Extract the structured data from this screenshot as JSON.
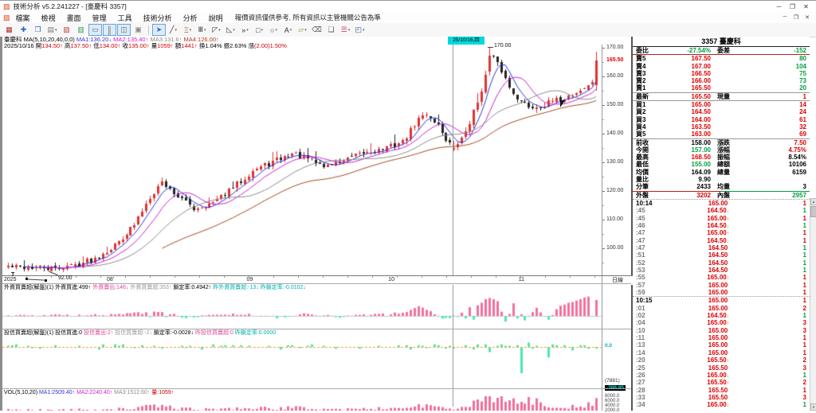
{
  "window": {
    "icon_glyph": "▨",
    "title": "技術分析 v5.2.241227 - [臺慶科 3357]",
    "controls": [
      "─",
      "❐",
      "✕"
    ]
  },
  "menu": {
    "icon_glyph": "▨",
    "items": [
      "檔案",
      "檢視",
      "畫面",
      "管理",
      "工具",
      "技術分析",
      "分析",
      "說明"
    ],
    "notice": "報價資訊僅供參考, 所有資訊以主管機關公告為準",
    "child_controls": [
      "─",
      "❐",
      "✕"
    ]
  },
  "toolbar": {
    "icons": [
      {
        "name": "market-chart-icon",
        "glyph": "▦",
        "color": "#b03030"
      },
      {
        "name": "new-chart-icon",
        "glyph": "✚",
        "color": "#2a62c8"
      },
      {
        "name": "window-layout-icon",
        "glyph": "❐",
        "color": "#2a62c8"
      },
      {
        "name": "chart-style-icon",
        "glyph": "▤",
        "color": "#777777",
        "dropdown": true
      },
      {
        "name": "close-page-icon",
        "glyph": "▧",
        "color": "#c04848"
      },
      {
        "name": "grid-chart-icon",
        "glyph": "▥",
        "color": "#2f9e55"
      },
      {
        "name": "line-chart-icon",
        "glyph": "▭",
        "color": "#666666",
        "selected": true
      },
      {
        "name": "candlestick-icon",
        "glyph": "║",
        "color": "#666666",
        "selected": true
      },
      {
        "name": "multi-panel-icon",
        "glyph": "◫",
        "color": "#666666",
        "selected": true
      },
      {
        "name": "snapshot-icon",
        "glyph": "▣",
        "color": "#888888"
      },
      {
        "sep": true
      },
      {
        "name": "pointer-tool-icon",
        "glyph": "➤",
        "color": "#3366bb",
        "selected": true
      },
      {
        "name": "trendline-tool-icon",
        "glyph": "╱",
        "color": "#333333",
        "dropdown": true
      },
      {
        "name": "fibonacci-tool-icon",
        "glyph": "Ξ",
        "color": "#aa6622",
        "dropdown": true
      },
      {
        "name": "vertical-lines-tool-icon",
        "glyph": "Ⅲ",
        "color": "#333333",
        "dropdown": true
      },
      {
        "name": "gann-fan-tool-icon",
        "glyph": "◸",
        "color": "#333333",
        "dropdown": true
      },
      {
        "name": "measure-tool-icon",
        "glyph": "◺",
        "color": "#333333",
        "dropdown": true
      },
      {
        "name": "marker-tool-icon",
        "glyph": "»",
        "color": "#333333",
        "dropdown": true
      },
      {
        "name": "rectangle-tool-icon",
        "glyph": "□",
        "color": "#333333",
        "dropdown": true
      },
      {
        "name": "ellipse-tool-icon",
        "glyph": "○",
        "color": "#333333",
        "dropdown": true
      },
      {
        "name": "text-tool-icon",
        "glyph": "A",
        "color": "#333333",
        "dropdown": true
      },
      {
        "name": "highlight-tool-icon",
        "glyph": "▱",
        "color": "#888833",
        "dropdown": true
      },
      {
        "name": "eraser-tool-icon",
        "glyph": "⌫",
        "color": "#555555"
      },
      {
        "name": "objects-list-icon",
        "glyph": "❏",
        "color": "#555555"
      },
      {
        "name": "indicator-lines-icon",
        "glyph": "☰",
        "color": "#d04070",
        "dropdown": true
      },
      {
        "name": "save-layout-icon",
        "glyph": "◰",
        "color": "#336699",
        "dropdown": true
      }
    ]
  },
  "info_line1": [
    {
      "t": "臺慶科 MA(5,10,20,40,0,0) ",
      "c": "#000000"
    },
    {
      "t": "MA1:136.20↓",
      "c": "#2b35d9"
    },
    {
      "t": " MA2:135.40↑",
      "c": "#cc22cc"
    },
    {
      "t": " MA3:131.6↑",
      "c": "#8a8a8a"
    },
    {
      "t": " MA4:126.00↑",
      "c": "#b03a1a"
    }
  ],
  "info_line2": [
    {
      "t": "2025/10/16 ",
      "c": "#000000"
    },
    {
      "t": "開",
      "c": "#000000"
    },
    {
      "t": "134.50↑ ",
      "c": "#d40000"
    },
    {
      "t": "高",
      "c": "#000000"
    },
    {
      "t": "137.50↑ ",
      "c": "#d40000"
    },
    {
      "t": "低",
      "c": "#000000"
    },
    {
      "t": "134.00↑ ",
      "c": "#d40000"
    },
    {
      "t": "收",
      "c": "#000000"
    },
    {
      "t": "135.00↑ ",
      "c": "#d40000"
    },
    {
      "t": "量",
      "c": "#000000"
    },
    {
      "t": "1059↑ ",
      "c": "#d40000"
    },
    {
      "t": "額",
      "c": "#000000"
    },
    {
      "t": "1441↑ ",
      "c": "#d40000"
    },
    {
      "t": "換",
      "c": "#000000"
    },
    {
      "t": "1.04% ",
      "c": "#000000"
    },
    {
      "t": "振",
      "c": "#000000"
    },
    {
      "t": "2.63% ",
      "c": "#000000"
    },
    {
      "t": "漲",
      "c": "#000000"
    },
    {
      "t": "(2.00)1.50%",
      "c": "#d40000"
    }
  ],
  "panel_foreign_header": [
    {
      "t": "外資買賣超(解盤)(1) ",
      "c": "#000000"
    },
    {
      "t": "外資買進:499↑",
      "c": "#000000"
    },
    {
      "t": " 外資賣出:146↓",
      "c": "#e0459a"
    },
    {
      "t": " 外資買賣超:353↑",
      "c": "#999999"
    },
    {
      "t": " 鎖定率:0.4942↑",
      "c": "#000000"
    },
    {
      "t": " 昨外資買賣超:-13↓",
      "c": "#00b0b0"
    },
    {
      "t": " 昨鎖定率:-0.0102↓",
      "c": "#00b0b0"
    }
  ],
  "panel_trust_header": [
    {
      "t": "投信買賣超(解盤)(1) ",
      "c": "#000000"
    },
    {
      "t": "投信買進:0",
      "c": "#000000"
    },
    {
      "t": " 投信賣出:2↑",
      "c": "#e0459a"
    },
    {
      "t": " 投信買賣超:-2↓",
      "c": "#999999"
    },
    {
      "t": " 鎖定率:-0.0028↓",
      "c": "#000000"
    },
    {
      "t": " 昨投信買賣超:0",
      "c": "#e0459a"
    },
    {
      "t": " 昨鎖定率:0.0000",
      "c": "#00b0b0"
    }
  ],
  "panel_volume_header": [
    {
      "t": "VOL(5,10,20) ",
      "c": "#000000"
    },
    {
      "t": "MA1:2509.40↑",
      "c": "#2b35d9"
    },
    {
      "t": " MA2:2240.40↑",
      "c": "#cc22cc"
    },
    {
      "t": " MA3:1512.60↑",
      "c": "#8a8a8a"
    },
    {
      "t": " 量:1059↑",
      "c": "#d40000"
    }
  ],
  "axis": {
    "y_labels": [
      "170.00",
      "160.00",
      "150.00",
      "140.00",
      "130.00",
      "120.00",
      "110.00",
      "100.00"
    ],
    "price_tag": "165.50",
    "x_labels": [
      {
        "t": "2025",
        "f": 0.0
      },
      {
        "t": "08'",
        "f": 0.172
      },
      {
        "t": "09",
        "f": 0.406
      },
      {
        "t": "10",
        "f": 0.643
      },
      {
        "t": "11",
        "f": 0.861
      }
    ],
    "x_highlight": "25/10/16,四",
    "period_label": "日線",
    "p3_zero_label": "0.0",
    "p3_extra": [
      "(7881)",
      "-386.85"
    ],
    "vol_axis": [
      "8000.0",
      "6000.0",
      "4000.0",
      "2000.0"
    ]
  },
  "annotations": {
    "high_label": "170.00",
    "low_label": "92.00",
    "drawing_t_mark": "T"
  },
  "chart_data": {
    "type": "candlestick",
    "symbol": "3357 臺慶科",
    "period": "日線",
    "days": 150,
    "ylim": [
      91,
      173
    ],
    "y_axis_ticks": [
      170,
      160,
      150,
      140,
      130,
      120,
      110,
      100
    ],
    "x_axis_ticks": [
      "2025",
      "08'",
      "09",
      "10",
      "11"
    ],
    "crosshair_day": 113,
    "crosshair_bar": {
      "date": "2025/10/16",
      "open": 134.5,
      "high": 137.5,
      "low": 134.0,
      "close": 135.0,
      "volume": 1059
    },
    "last_bar": {
      "open": 157.0,
      "high": 168.5,
      "low": 155.0,
      "close": 165.5,
      "volume": 6159
    },
    "prev_close": 158.0,
    "high_annotation": {
      "day": 122,
      "price": 170.0,
      "text": "170.00"
    },
    "low_annotation": {
      "day": 12,
      "price": 92.0,
      "text": "92.00"
    },
    "ma_values": {
      "MA1": 136.2,
      "MA2": 135.4,
      "MA3": 131.6,
      "MA4": 126.0
    },
    "close_anchors": [
      [
        0,
        93.5
      ],
      [
        6,
        93.2
      ],
      [
        12,
        92.8
      ],
      [
        18,
        94.5
      ],
      [
        22,
        96.5
      ],
      [
        27,
        101
      ],
      [
        32,
        108
      ],
      [
        36,
        118
      ],
      [
        39,
        123
      ],
      [
        43,
        118
      ],
      [
        47,
        114
      ],
      [
        52,
        115.5
      ],
      [
        57,
        121
      ],
      [
        62,
        127
      ],
      [
        67,
        130
      ],
      [
        72,
        133
      ],
      [
        76,
        131
      ],
      [
        80,
        128.5
      ],
      [
        84,
        130
      ],
      [
        90,
        133
      ],
      [
        96,
        135
      ],
      [
        100,
        137
      ],
      [
        104,
        145
      ],
      [
        106,
        147
      ],
      [
        109,
        143
      ],
      [
        111,
        138
      ],
      [
        113,
        135
      ],
      [
        115,
        138
      ],
      [
        117,
        144
      ],
      [
        119,
        151
      ],
      [
        121,
        160
      ],
      [
        122,
        167
      ],
      [
        123,
        166
      ],
      [
        125,
        162
      ],
      [
        127,
        156
      ],
      [
        130,
        151
      ],
      [
        133,
        149
      ],
      [
        136,
        150
      ],
      [
        139,
        151.5
      ],
      [
        142,
        153
      ],
      [
        145,
        155
      ],
      [
        147,
        156.5
      ],
      [
        148,
        158
      ],
      [
        149,
        165.5
      ]
    ],
    "pinned_closes": {
      "12": 92.8,
      "113": 135,
      "122": 167,
      "148": 158,
      "149": 165.5
    },
    "pinned_opens": {
      "113": 134.5,
      "122": 161.5,
      "149": 157
    },
    "pinned_highs": {
      "113": 137.5,
      "122": 170,
      "149": 168.5
    },
    "pinned_lows": {
      "12": 92,
      "113": 134,
      "149": 155
    },
    "volume_anchors": [
      [
        0,
        1100
      ],
      [
        10,
        900
      ],
      [
        20,
        1100
      ],
      [
        30,
        1400
      ],
      [
        36,
        2300
      ],
      [
        39,
        2600
      ],
      [
        44,
        1500
      ],
      [
        50,
        1200
      ],
      [
        57,
        1500
      ],
      [
        62,
        1800
      ],
      [
        67,
        1500
      ],
      [
        72,
        1900
      ],
      [
        80,
        1300
      ],
      [
        85,
        1200
      ],
      [
        92,
        1500
      ],
      [
        100,
        1700
      ],
      [
        104,
        2800
      ],
      [
        106,
        3000
      ],
      [
        109,
        1800
      ],
      [
        113,
        1059
      ],
      [
        116,
        2400
      ],
      [
        119,
        3900
      ],
      [
        121,
        5600
      ],
      [
        122,
        6600
      ],
      [
        124,
        6000
      ],
      [
        126,
        5400
      ],
      [
        128,
        4600
      ],
      [
        130,
        3600
      ],
      [
        133,
        5000
      ],
      [
        136,
        2600
      ],
      [
        139,
        2100
      ],
      [
        142,
        2400
      ],
      [
        145,
        3000
      ],
      [
        147,
        3300
      ],
      [
        148,
        2800
      ],
      [
        149,
        6159
      ]
    ],
    "pinned_volumes": {
      "113": 1059,
      "148": 2800,
      "149": 6159
    },
    "foreign_anchors": [
      [
        0,
        8
      ],
      [
        15,
        12
      ],
      [
        25,
        25
      ],
      [
        33,
        60
      ],
      [
        39,
        90
      ],
      [
        45,
        -40
      ],
      [
        52,
        20
      ],
      [
        60,
        45
      ],
      [
        68,
        -30
      ],
      [
        75,
        35
      ],
      [
        85,
        -25
      ],
      [
        92,
        30
      ],
      [
        100,
        60
      ],
      [
        104,
        200
      ],
      [
        107,
        120
      ],
      [
        110,
        -80
      ],
      [
        113,
        -13
      ],
      [
        116,
        150
      ],
      [
        119,
        260
      ],
      [
        122,
        400
      ],
      [
        124,
        340
      ],
      [
        126,
        -150
      ],
      [
        128,
        280
      ],
      [
        131,
        -90
      ],
      [
        134,
        180
      ],
      [
        137,
        -60
      ],
      [
        140,
        220
      ],
      [
        143,
        300
      ],
      [
        145,
        380
      ],
      [
        147,
        430
      ],
      [
        148,
        -13
      ],
      [
        149,
        353
      ]
    ],
    "pinned_foreign": {
      "148": -13,
      "149": 353
    },
    "trust_pins": {
      "122": -6,
      "130": -30,
      "132": 5,
      "137": -12,
      "143": -4,
      "146": 2,
      "148": 0,
      "149": -2
    }
  },
  "quote": {
    "title": "3357 臺慶科",
    "weight_row": {
      "l1": "委比",
      "v1": "-27.54%",
      "l2": "委差",
      "v2": "-152"
    },
    "asks": [
      {
        "l": "賣5",
        "p": "167.50",
        "q": "80"
      },
      {
        "l": "賣4",
        "p": "167.00",
        "q": "104"
      },
      {
        "l": "賣3",
        "p": "166.50",
        "q": "75"
      },
      {
        "l": "賣2",
        "p": "166.00",
        "q": "73"
      },
      {
        "l": "賣1",
        "p": "165.50",
        "q": "20"
      }
    ],
    "latest_row": {
      "l1": "最新",
      "v1": "165.50",
      "l2": "現量",
      "v2": "1"
    },
    "bids": [
      {
        "l": "買1",
        "p": "165.00",
        "q": "14"
      },
      {
        "l": "買2",
        "p": "164.50",
        "q": "24"
      },
      {
        "l": "買3",
        "p": "164.00",
        "q": "61"
      },
      {
        "l": "買4",
        "p": "163.50",
        "q": "32"
      },
      {
        "l": "買5",
        "p": "163.00",
        "q": "69"
      }
    ],
    "stats": [
      {
        "l1": "前收",
        "v1": "158.00",
        "c1": "k",
        "l2": "漲跌",
        "v2": "7.50",
        "c2": "r"
      },
      {
        "l1": "今開",
        "v1": "157.00",
        "c1": "g",
        "l2": "漲幅",
        "v2": "4.75%",
        "c2": "r"
      },
      {
        "l1": "最高",
        "v1": "168.50",
        "c1": "r",
        "l2": "振幅",
        "v2": "8.54%",
        "c2": "k"
      },
      {
        "l1": "最低",
        "v1": "155.00",
        "c1": "g",
        "l2": "總額",
        "v2": "10106",
        "c2": "k"
      },
      {
        "l1": "均價",
        "v1": "164.09",
        "c1": "k",
        "l2": "總量",
        "v2": "6159",
        "c2": "k"
      },
      {
        "l1": "量比",
        "v1": "9.90",
        "c1": "k",
        "l2": "",
        "v2": "",
        "c2": "k"
      },
      {
        "l1": "分筆",
        "v1": "2433",
        "c1": "k",
        "l2": "均量",
        "v2": "3",
        "c2": "k"
      },
      {
        "l1": "外盤",
        "v1": "3202",
        "c1": "r",
        "l2": "內盤",
        "v2": "2957",
        "c2": "g"
      }
    ],
    "ticks": [
      {
        "t": "10:14",
        "p": "165.00",
        "a": "",
        "v": "1",
        "vc": "r",
        "m": true
      },
      {
        "t": ":45",
        "p": "164.50",
        "a": "d",
        "v": "1",
        "vc": "g"
      },
      {
        "t": ":45",
        "p": "165.00",
        "a": "u",
        "v": "1",
        "vc": "r"
      },
      {
        "t": ":46",
        "p": "164.50",
        "a": "d",
        "v": "1",
        "vc": "g"
      },
      {
        "t": ":47",
        "p": "165.00",
        "a": "u",
        "v": "1",
        "vc": "r"
      },
      {
        "t": ":47",
        "p": "164.50",
        "a": "d",
        "v": "1",
        "vc": "r"
      },
      {
        "t": ":47",
        "p": "164.50",
        "a": "",
        "v": "1",
        "vc": "g"
      },
      {
        "t": ":51",
        "p": "164.50",
        "a": "",
        "v": "1",
        "vc": "g"
      },
      {
        "t": ":52",
        "p": "164.50",
        "a": "",
        "v": "1",
        "vc": "g"
      },
      {
        "t": ":53",
        "p": "164.50",
        "a": "",
        "v": "1",
        "vc": "g"
      },
      {
        "t": ":55",
        "p": "165.00",
        "a": "u",
        "v": "1",
        "vc": "r"
      },
      {
        "t": ":57",
        "p": "165.00",
        "a": "",
        "v": "1",
        "vc": "r"
      },
      {
        "t": ":59",
        "p": "165.00",
        "a": "",
        "v": "1",
        "vc": "r"
      },
      {
        "t": "10:15",
        "p": "165.00",
        "a": "",
        "v": "1",
        "vc": "r",
        "m": true
      },
      {
        "t": ":01",
        "p": "165.00",
        "a": "",
        "v": "2",
        "vc": "r"
      },
      {
        "t": ":02",
        "p": "164.50",
        "a": "d",
        "v": "1",
        "vc": "g"
      },
      {
        "t": ":04",
        "p": "165.00",
        "a": "u",
        "v": "3",
        "vc": "r"
      },
      {
        "t": ":10",
        "p": "165.00",
        "a": "",
        "v": "3",
        "vc": "r"
      },
      {
        "t": ":11",
        "p": "165.00",
        "a": "",
        "v": "1",
        "vc": "r"
      },
      {
        "t": ":13",
        "p": "165.00",
        "a": "",
        "v": "1",
        "vc": "r"
      },
      {
        "t": ":14",
        "p": "165.00",
        "a": "",
        "v": "1",
        "vc": "r"
      },
      {
        "t": ":20",
        "p": "165.50",
        "a": "u",
        "v": "2",
        "vc": "r"
      },
      {
        "t": ":25",
        "p": "165.50",
        "a": "",
        "v": "3",
        "vc": "r"
      },
      {
        "t": ":26",
        "p": "165.00",
        "a": "d",
        "v": "1",
        "vc": "g"
      },
      {
        "t": ":27",
        "p": "165.50",
        "a": "u",
        "v": "2",
        "vc": "r"
      },
      {
        "t": ":28",
        "p": "165.50",
        "a": "",
        "v": "1",
        "vc": "r"
      },
      {
        "t": ":33",
        "p": "165.50",
        "a": "",
        "v": "3",
        "vc": "r"
      },
      {
        "t": ":34",
        "p": "165.00",
        "a": "d",
        "v": "1",
        "vc": "g"
      }
    ],
    "scroll_glyphs": {
      "up": "▲",
      "down": "▼"
    }
  },
  "colors": {
    "up_candle": "#e03232",
    "down_candle": "#222222",
    "ma1": "#2b35d9",
    "ma2": "#cc22cc",
    "ma3": "#8a8a8a",
    "ma4": "#a04a20",
    "bar_pink": "#f4719c",
    "bar_mint": "#4de8ac",
    "bar_vol": "#f0709a",
    "zero_orange": "#f0a040",
    "crosshair": "#9a9a9a",
    "text_red": "#dd0000",
    "text_green": "#00a040",
    "highlight_cyan": "#00d9d9"
  }
}
